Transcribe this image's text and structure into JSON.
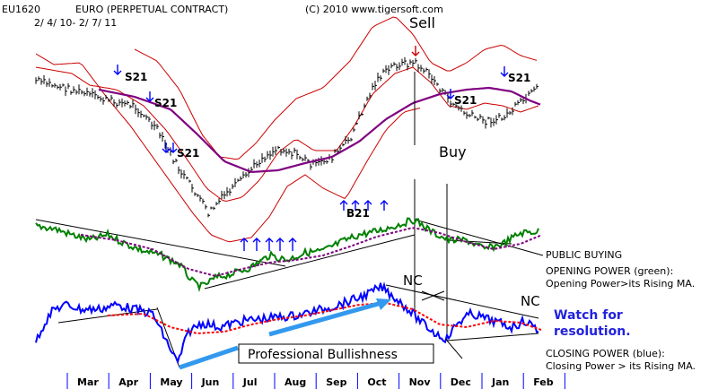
{
  "header": {
    "symbol": "EU1620",
    "name": "EURO  (PERPETUAL CONTRACT)",
    "copyright": "(C) 2010 www.tigersoft.com",
    "date_range": "2/ 4/ 10- 2/ 7/ 11"
  },
  "annotations": {
    "sell": "Sell",
    "buy": "Buy",
    "nc_left": "NC",
    "nc_right": "NC",
    "s21": "S21",
    "b21": "B21",
    "public_buying": "PUBLIC BUYING",
    "opening_power_title": "OPENING POWER (green):",
    "opening_power_desc": "Opening Power>its Rising MA.",
    "watch_line1": "Watch for",
    "watch_line2": "resolution.",
    "professional": "Professional Bullishness",
    "closing_power_title": "CLOSING POWER (blue):",
    "closing_power_desc": "Closing Power > its Rising MA."
  },
  "colors": {
    "bands": "#cc0000",
    "moving_average": "#800080",
    "opening_power": "#008000",
    "closing_power": "#0000ff",
    "closing_ma": "#ff0000",
    "signal_arrow": "#0000ff",
    "trendline_arrow": "#3399ee"
  },
  "chart_data": {
    "type": "line",
    "x": [
      "Mar",
      "Apr",
      "May",
      "Jun",
      "Jul",
      "Aug",
      "Sep",
      "Oct",
      "Nov",
      "Dec",
      "Jan",
      "Feb"
    ],
    "price_monthly_approx": [
      1.36,
      1.34,
      1.24,
      1.22,
      1.28,
      1.3,
      1.33,
      1.39,
      1.34,
      1.32,
      1.33,
      1.36
    ],
    "series": [
      {
        "name": "OPENING POWER (green)"
      },
      {
        "name": "CLOSING POWER (blue)"
      }
    ],
    "signals": [
      {
        "label": "S21",
        "month": "Mar"
      },
      {
        "label": "S21",
        "month": "Apr"
      },
      {
        "label": "S21",
        "month": "Apr"
      },
      {
        "label": "B21",
        "month": "Sep"
      },
      {
        "label": "Sell",
        "month": "Nov"
      },
      {
        "label": "Buy",
        "month": "Nov"
      },
      {
        "label": "S21",
        "month": "Nov"
      },
      {
        "label": "S21",
        "month": "Jan"
      }
    ]
  }
}
